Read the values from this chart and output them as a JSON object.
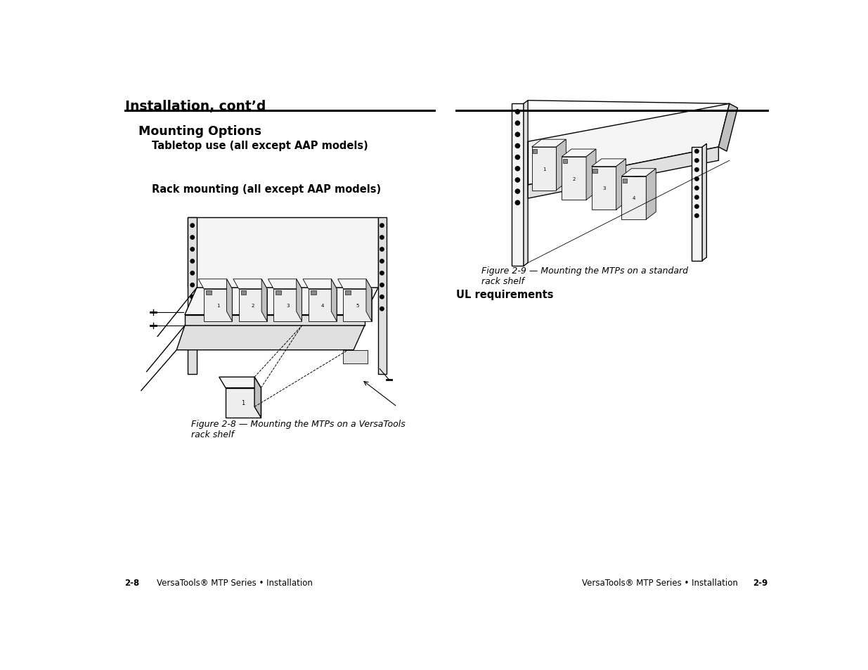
{
  "bg_color": "#ffffff",
  "left_header": "Installation, cont’d",
  "left_section1_title": "Mounting Options",
  "left_section2_label": "Tabletop use (all except AAP models)",
  "left_section3_label": "Rack mounting (all except AAP models)",
  "fig2_8_caption": "Figure 2-8 — Mounting the MTPs on a VersaTools\nrack shelf",
  "fig2_9_caption": "Figure 2-9 — Mounting the MTPs on a standard\nrack shelf",
  "ul_label": "UL requirements",
  "footer_left_num": "2-8",
  "footer_left_text": "VersaTools® MTP Series • Installation",
  "footer_right_text": "VersaTools® MTP Series • Installation",
  "footer_right_num": "2-9"
}
